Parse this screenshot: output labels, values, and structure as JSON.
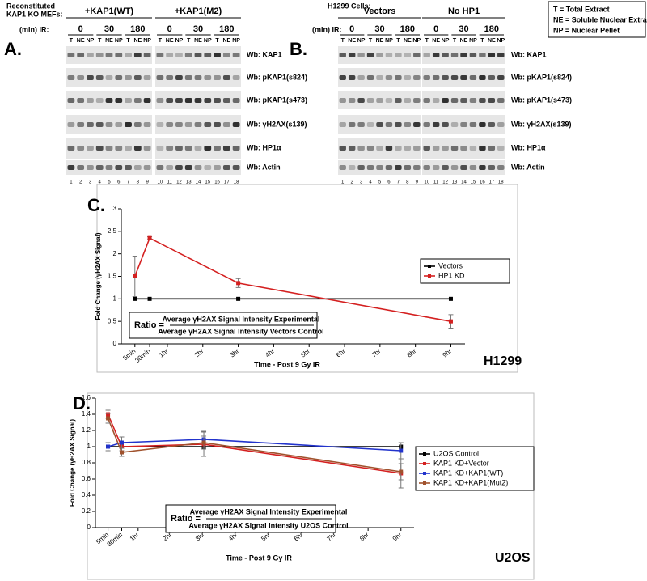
{
  "figure": {
    "panel_a": {
      "label": "A.",
      "header": [
        "Reconstituted",
        "KAP1 KO MEFs:"
      ],
      "groups": [
        "+KAP1(WT)",
        "+KAP1(M2)"
      ],
      "ir_label": "(min) IR:",
      "timepoints": [
        "0",
        "30",
        "180"
      ],
      "fractions": [
        "T",
        "NE",
        "NP"
      ],
      "lanes": [
        "1",
        "2",
        "3",
        "4",
        "5",
        "6",
        "7",
        "8",
        "9",
        "10",
        "11",
        "12",
        "13",
        "14",
        "15",
        "16",
        "17",
        "18"
      ],
      "blots": [
        "Wb: KAP1",
        "Wb: pKAP1(s824)",
        "Wb: pKAP1(s473)",
        "Wb: γH2AX(s139)",
        "Wb: HP1α",
        "Wb: Actin"
      ]
    },
    "panel_b": {
      "label": "B.",
      "header": [
        "H1299 Cells:"
      ],
      "groups": [
        "Vectors",
        "No HP1"
      ],
      "ir_label": "(min) IR:",
      "timepoints": [
        "0",
        "30",
        "180"
      ],
      "fractions": [
        "T",
        "NE",
        "NP"
      ],
      "lanes": [
        "1",
        "2",
        "3",
        "4",
        "5",
        "6",
        "7",
        "8",
        "9",
        "10",
        "11",
        "12",
        "13",
        "14",
        "15",
        "16",
        "17",
        "18"
      ],
      "blots": [
        "Wb: KAP1",
        "Wb: pKAP1(s824)",
        "Wb: pKAP1(s473)",
        "Wb: γH2AX(s139)",
        "Wb: HP1α",
        "Wb: Actin"
      ]
    },
    "legend": [
      "T = Total Extract",
      "NE = Soluble Nuclear Extract",
      "NP = Nuclear Pellet"
    ]
  },
  "chart_data": [
    {
      "type": "line",
      "label": "C.",
      "cell_line": "H1299",
      "y_label": "Fold Change (γH2AX Signal)",
      "x_label": "Time - Post 9 Gy IR",
      "ratio": {
        "prefix": "Ratio =",
        "numerator": "Average γH2AX Signal Intensity Experimental",
        "denominator": "Average γH2AX Signal Intensity Vectors Control"
      },
      "x": [
        0.0833,
        0.5,
        3,
        9
      ],
      "series": [
        {
          "name": "Vectors",
          "color": "#000000",
          "values": [
            1,
            1,
            1,
            1
          ]
        },
        {
          "name": "HP1 KD",
          "color": "#d42020",
          "values": [
            1.5,
            2.35,
            1.35,
            0.5
          ],
          "errors": [
            0.45,
            0.03,
            0.1,
            0.15
          ]
        }
      ],
      "xlim": [
        -0.3,
        9.4
      ],
      "ylim": [
        0,
        3
      ],
      "yticks": [
        0,
        0.5,
        1,
        1.5,
        2,
        2.5,
        3
      ],
      "xticks": [
        {
          "value": 0.0833,
          "label": "5min"
        },
        {
          "value": 0.5,
          "label": "30min"
        },
        {
          "value": 1,
          "label": "1hr"
        },
        {
          "value": 2,
          "label": "2hr"
        },
        {
          "value": 3,
          "label": "3hr"
        },
        {
          "value": 4,
          "label": "4hr"
        },
        {
          "value": 5,
          "label": "5hr"
        },
        {
          "value": 6,
          "label": "6hr"
        },
        {
          "value": 7,
          "label": "7hr"
        },
        {
          "value": 8,
          "label": "8hr"
        },
        {
          "value": 9,
          "label": "9hr"
        }
      ],
      "legend": "right"
    },
    {
      "type": "line",
      "label": "D.",
      "cell_line": "U2OS",
      "y_label": "Fold Change (γH2AX Signal)",
      "x_label": "Time - Post 9 Gy IR",
      "ratio": {
        "prefix": "Ratio =",
        "numerator": "Average γH2AX Signal Intensity Experimental",
        "denominator": "Average γH2AX Signal Intensity U2OS Control"
      },
      "x": [
        0.0833,
        0.5,
        3,
        9
      ],
      "series": [
        {
          "name": "U2OS Control",
          "color": "#000000",
          "values": [
            1,
            1,
            1,
            1
          ]
        },
        {
          "name": "KAP1 KD+Vector",
          "color": "#d42020",
          "values": [
            1.4,
            1.0,
            1.03,
            0.67
          ],
          "errors": [
            0.05,
            0.05,
            0.15,
            0.18
          ]
        },
        {
          "name": "KAP1 KD+KAP1(WT)",
          "color": "#2233cc",
          "values": [
            1.0,
            1.05,
            1.09,
            0.95
          ],
          "errors": [
            0.05,
            0.07,
            0.1,
            0.1
          ]
        },
        {
          "name": "KAP1 KD+KAP1(Mut2)",
          "color": "#a0522d",
          "values": [
            1.35,
            0.93,
            1.05,
            0.69
          ],
          "errors": [
            0.06,
            0.05,
            0.08,
            0.1
          ]
        }
      ],
      "xlim": [
        -0.3,
        9.4
      ],
      "ylim": [
        0,
        1.6
      ],
      "yticks": [
        0,
        0.2,
        0.4,
        0.6,
        0.8,
        1,
        1.2,
        1.4,
        1.6
      ],
      "xticks": [
        {
          "value": 0.0833,
          "label": "5min"
        },
        {
          "value": 0.5,
          "label": "30min"
        },
        {
          "value": 1,
          "label": "1hr"
        },
        {
          "value": 2,
          "label": "2hr"
        },
        {
          "value": 3,
          "label": "3hr"
        },
        {
          "value": 4,
          "label": "4hr"
        },
        {
          "value": 5,
          "label": "5hr"
        },
        {
          "value": 6,
          "label": "6hr"
        },
        {
          "value": 7,
          "label": "7hr"
        },
        {
          "value": 8,
          "label": "8hr"
        },
        {
          "value": 9,
          "label": "9hr"
        }
      ],
      "legend": "right"
    }
  ]
}
